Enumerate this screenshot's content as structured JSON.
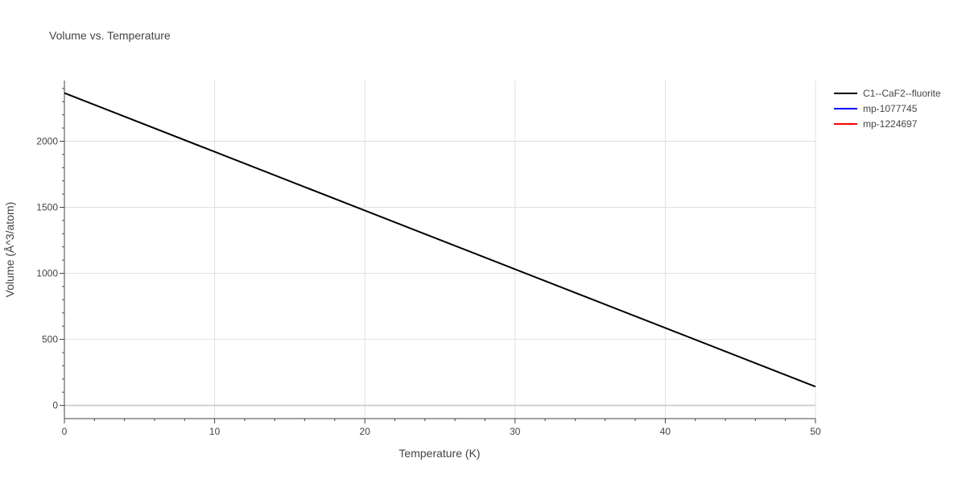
{
  "chart_data": {
    "type": "line",
    "title": "Volume vs. Temperature",
    "xlabel": "Temperature (K)",
    "ylabel": "Volume (Å^3/atom)",
    "xlim": [
      0,
      50
    ],
    "ylim": [
      -100,
      2460
    ],
    "xticks": [
      0,
      10,
      20,
      30,
      40,
      50
    ],
    "yticks": [
      0,
      500,
      1000,
      1500,
      2000
    ],
    "grid": true,
    "legend_position": "top-right",
    "series": [
      {
        "name": "C1--CaF2--fluorite",
        "color": "#000000",
        "x": [
          0,
          50
        ],
        "y": [
          2365,
          142
        ]
      },
      {
        "name": "mp-1077745",
        "color": "#0000ff",
        "x": [],
        "y": []
      },
      {
        "name": "mp-1224697",
        "color": "#ff0000",
        "x": [],
        "y": []
      }
    ]
  }
}
